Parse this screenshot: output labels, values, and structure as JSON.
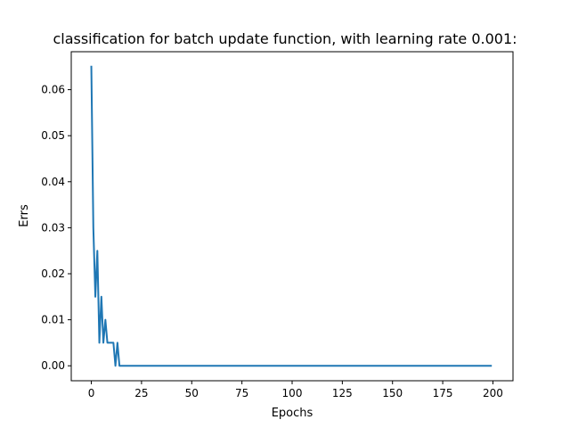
{
  "chart_data": {
    "type": "line",
    "title": "classification for batch update function, with learning rate 0.001:",
    "xlabel": "Epochs",
    "ylabel": "Errs",
    "xlim": [
      -10,
      210
    ],
    "ylim": [
      -0.00325,
      0.06825
    ],
    "xticks": [
      0,
      25,
      50,
      75,
      100,
      125,
      150,
      175,
      200
    ],
    "xtick_labels": [
      "0",
      "25",
      "50",
      "75",
      "100",
      "125",
      "150",
      "175",
      "200"
    ],
    "yticks": [
      0.0,
      0.01,
      0.02,
      0.03,
      0.04,
      0.05,
      0.06
    ],
    "ytick_labels": [
      "0.00",
      "0.01",
      "0.02",
      "0.03",
      "0.04",
      "0.05",
      "0.06"
    ],
    "grid": false,
    "series": [
      {
        "color": "#1f77b4",
        "x": [
          0,
          1,
          2,
          3,
          4,
          5,
          6,
          7,
          8,
          9,
          10,
          11,
          12,
          13,
          14,
          199
        ],
        "y": [
          0.065,
          0.03,
          0.015,
          0.025,
          0.005,
          0.015,
          0.005,
          0.01,
          0.005,
          0.005,
          0.005,
          0.005,
          0.0,
          0.005,
          0.0,
          0.0
        ]
      }
    ]
  }
}
